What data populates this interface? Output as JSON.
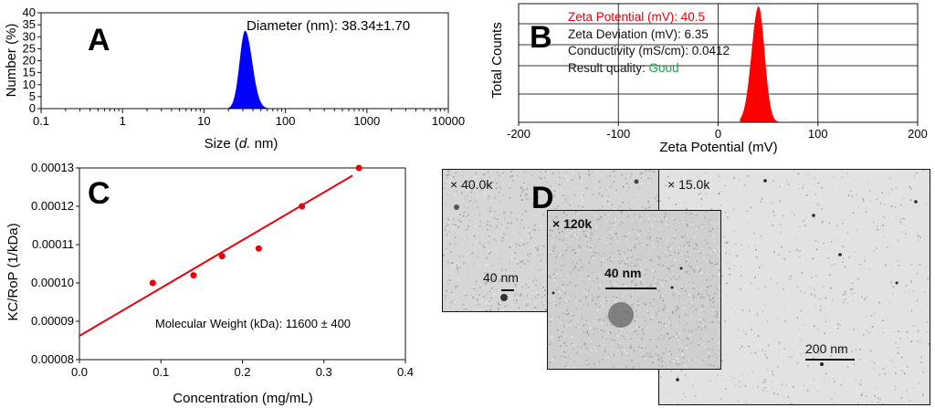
{
  "panels": {
    "a": {
      "letter": "A"
    },
    "b": {
      "letter": "B"
    },
    "c": {
      "letter": "C"
    },
    "d": {
      "letter": "D"
    }
  },
  "chart_data": [
    {
      "id": "A",
      "type": "area",
      "xlabel_prefix": "Size (",
      "xlabel_italic": "d.",
      "xlabel_suffix": " nm)",
      "ylabel": "Number (%)",
      "x_scale": "log",
      "xlim": [
        0.1,
        10000
      ],
      "ylim": [
        0,
        40
      ],
      "x_ticks": [
        "0.1",
        "1",
        "10",
        "100",
        "1000",
        "10000"
      ],
      "y_ticks": [
        "0",
        "5",
        "10",
        "15",
        "20",
        "25",
        "30",
        "35",
        "40"
      ],
      "annotation": "Diameter (nm): 38.34±1.70",
      "series": [
        {
          "color": "#0000ff",
          "peak_x": 32,
          "peak_y": 32.5,
          "x_range": [
            20,
            60
          ]
        }
      ]
    },
    {
      "id": "B",
      "type": "area",
      "xlabel": "Zeta Potential (mV)",
      "ylabel": "Total Counts",
      "xlim": [
        -200,
        200
      ],
      "x_ticks": [
        "-200",
        "-100",
        "0",
        "100",
        "200"
      ],
      "grid": true,
      "annotations": [
        {
          "text": "Zeta Potential (mV): 40.5",
          "color": "#e8000b"
        },
        {
          "text": "Zeta Deviation (mV): 6.35",
          "color": "#111111"
        },
        {
          "text": "Conductivity (mS/cm): 0.0412",
          "color": "#111111"
        },
        {
          "label": "Result quality: ",
          "value": "Good",
          "value_color": "#22a34a"
        }
      ],
      "series": [
        {
          "color": "#ff0000",
          "peak_x": 40.5,
          "x_range": [
            22,
            62
          ]
        }
      ]
    },
    {
      "id": "C",
      "type": "scatter",
      "xlabel": "Concentration (mg/mL)",
      "ylabel": "KC/RoP (1/kDa)",
      "xlim": [
        0.0,
        0.4
      ],
      "ylim": [
        8e-05,
        0.00013
      ],
      "x_ticks": [
        "0.0",
        "0.1",
        "0.2",
        "0.3",
        "0.4"
      ],
      "y_ticks": [
        "0.00008",
        "0.00009",
        "0.00010",
        "0.00011",
        "0.00012",
        "0.00013"
      ],
      "annotation": "Molecular Weight (kDa): 11600 ± 400",
      "points": [
        {
          "x": 0.09,
          "y": 0.0001
        },
        {
          "x": 0.14,
          "y": 0.000102
        },
        {
          "x": 0.175,
          "y": 0.000107
        },
        {
          "x": 0.22,
          "y": 0.000109
        },
        {
          "x": 0.273,
          "y": 0.00012
        },
        {
          "x": 0.343,
          "y": 0.00013
        }
      ],
      "fit_line": {
        "x": [
          0.0,
          0.335
        ],
        "y": [
          8.62e-05,
          0.000128
        ]
      },
      "color": "#e8000b"
    }
  ],
  "micrographs": [
    {
      "id": "m1",
      "magnification": "× 40.0k",
      "scale_label": "40 nm"
    },
    {
      "id": "m2",
      "magnification": "× 15.0k",
      "scale_label": "200 nm"
    },
    {
      "id": "m3",
      "magnification": "× 120k",
      "scale_label": "40 nm"
    }
  ]
}
